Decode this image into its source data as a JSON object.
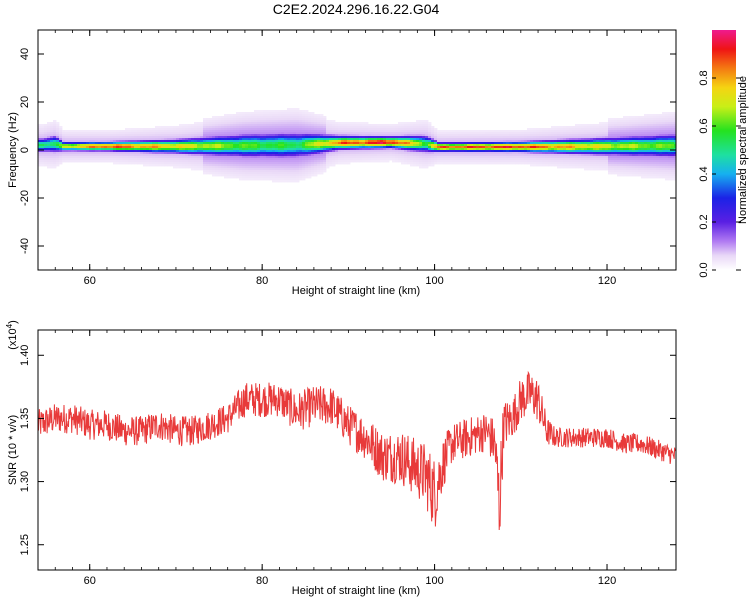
{
  "figure": {
    "title": "C2E2.2024.296.16.22.G04"
  },
  "chart_data": [
    {
      "type": "heatmap",
      "xlabel": "Height of straight line (km)",
      "ylabel": "Frequency (Hz)",
      "xlim": [
        54,
        128
      ],
      "ylim": [
        -50,
        50
      ],
      "xticks": [
        "60",
        "80",
        "100",
        "120"
      ],
      "yticks": [
        "40",
        "20",
        "0",
        "-20",
        "-40"
      ],
      "colorbar": {
        "label": "Normalized spectral amplitude",
        "range": [
          0,
          1
        ],
        "ticks": [
          "0.0",
          "0.2",
          "0.4",
          "0.6",
          "0.8"
        ]
      },
      "ridge": [
        {
          "x": 54.5,
          "freq": 2,
          "spread": 1.2,
          "amp": 0.55
        },
        {
          "x": 56,
          "freq": 2.5,
          "spread": 1.5,
          "amp": 0.5
        },
        {
          "x": 57,
          "freq": 1.5,
          "spread": 0.8,
          "amp": 0.7
        },
        {
          "x": 62,
          "freq": 1.5,
          "spread": 0.8,
          "amp": 0.9
        },
        {
          "x": 70,
          "freq": 1.5,
          "spread": 1.2,
          "amp": 0.75
        },
        {
          "x": 78,
          "freq": 1.8,
          "spread": 2.0,
          "amp": 0.6
        },
        {
          "x": 84,
          "freq": 2.0,
          "spread": 2.2,
          "amp": 0.55
        },
        {
          "x": 89,
          "freq": 3.0,
          "spread": 1.2,
          "amp": 0.85
        },
        {
          "x": 95,
          "freq": 3.2,
          "spread": 1.0,
          "amp": 0.95
        },
        {
          "x": 99,
          "freq": 2.5,
          "spread": 1.5,
          "amp": 0.6
        },
        {
          "x": 100.5,
          "freq": 1.2,
          "spread": 0.8,
          "amp": 0.85
        },
        {
          "x": 110,
          "freq": 1.3,
          "spread": 0.9,
          "amp": 0.9
        },
        {
          "x": 120,
          "freq": 1.5,
          "spread": 1.5,
          "amp": 0.7
        },
        {
          "x": 128,
          "freq": 1.8,
          "spread": 2.0,
          "amp": 0.6
        }
      ]
    },
    {
      "type": "line",
      "xlabel": "Height of straight line (km)",
      "ylabel": "SNR (10 * v/v)",
      "exponent_label": "(x10",
      "exponent_power": "4",
      "exponent_close": ")",
      "xlim": [
        54,
        128
      ],
      "ylim": [
        1.23,
        1.42
      ],
      "xticks": [
        "60",
        "80",
        "100",
        "120"
      ],
      "yticks": [
        "1.40",
        "1.35",
        "1.30",
        "1.25"
      ],
      "color": "#e83a3a",
      "series": [
        {
          "x": [
            54,
            56,
            58,
            60,
            62,
            64,
            66,
            68,
            70,
            72,
            74,
            76,
            78,
            80,
            82,
            84,
            86,
            88,
            90,
            92,
            94,
            96,
            98,
            99,
            100,
            101,
            102,
            104,
            106,
            107,
            107.5,
            108,
            109,
            110,
            111,
            112,
            113,
            114,
            116,
            118,
            120,
            122,
            124,
            126,
            128
          ],
          "y": [
            1.345,
            1.35,
            1.35,
            1.345,
            1.345,
            1.34,
            1.34,
            1.345,
            1.34,
            1.34,
            1.345,
            1.35,
            1.365,
            1.365,
            1.365,
            1.355,
            1.36,
            1.36,
            1.345,
            1.335,
            1.32,
            1.32,
            1.31,
            1.305,
            1.29,
            1.315,
            1.33,
            1.335,
            1.34,
            1.33,
            1.28,
            1.345,
            1.35,
            1.365,
            1.37,
            1.365,
            1.34,
            1.335,
            1.335,
            1.335,
            1.335,
            1.33,
            1.33,
            1.325,
            1.32
          ]
        }
      ],
      "noise_amplitude": [
        0.012,
        0.012,
        0.012,
        0.012,
        0.012,
        0.012,
        0.012,
        0.012,
        0.012,
        0.012,
        0.012,
        0.012,
        0.014,
        0.014,
        0.014,
        0.016,
        0.016,
        0.016,
        0.016,
        0.018,
        0.02,
        0.022,
        0.024,
        0.026,
        0.03,
        0.02,
        0.016,
        0.016,
        0.016,
        0.02,
        0.04,
        0.02,
        0.016,
        0.018,
        0.018,
        0.018,
        0.012,
        0.008,
        0.008,
        0.008,
        0.008,
        0.008,
        0.008,
        0.008,
        0.008
      ]
    }
  ]
}
